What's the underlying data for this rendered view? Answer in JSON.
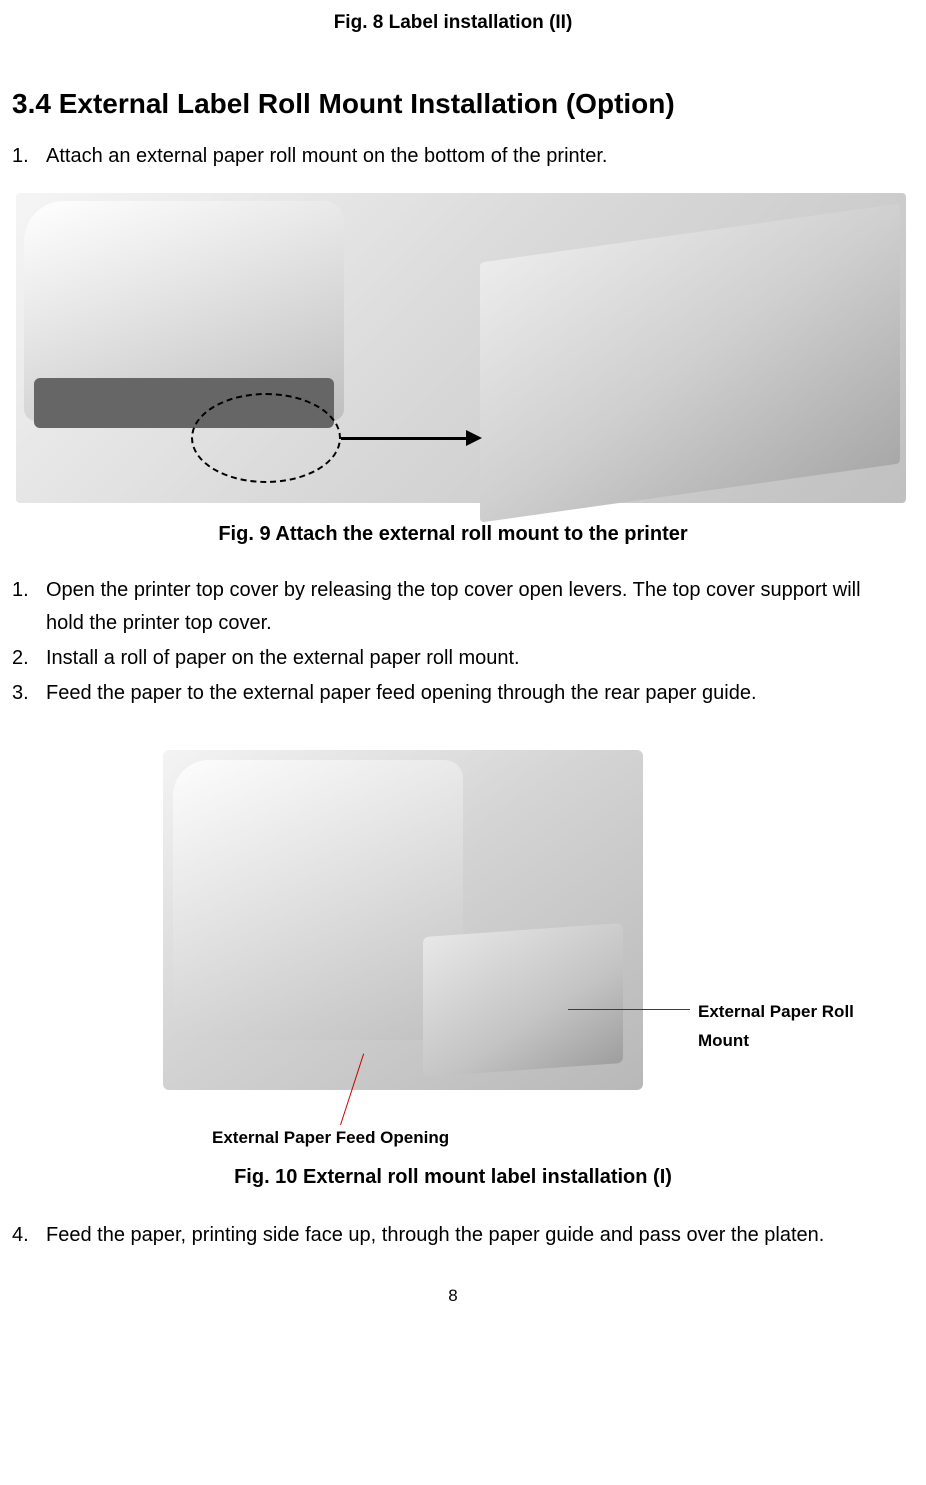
{
  "fig8_caption": "Fig. 8 Label installation (II)",
  "section_heading": "3.4 External Label Roll Mount Installation (Option)",
  "list_a": {
    "items": [
      {
        "num": "1.",
        "text": "Attach an external paper roll mount on the bottom of the printer."
      }
    ]
  },
  "fig9_caption": "Fig. 9 Attach the external roll mount to the printer",
  "list_b": {
    "items": [
      {
        "num": "1.",
        "text": "Open the printer top cover by releasing the top cover open levers. The top cover support will hold the printer top cover."
      },
      {
        "num": "2.",
        "text": "Install a roll of paper on the external paper roll mount."
      },
      {
        "num": "3.",
        "text": "Feed the paper to the external paper feed opening through the rear paper guide."
      }
    ]
  },
  "fig10": {
    "callout_right_line1": "External Paper Roll",
    "callout_right_line2": "Mount",
    "callout_bottom": "External Paper Feed Opening",
    "caption": "Fig. 10 External roll mount label installation (I)",
    "callout_line_color": "#cc0000"
  },
  "list_c": {
    "items": [
      {
        "num": "4.",
        "text": "Feed the paper, printing side face up, through the paper guide and pass over the platen."
      }
    ]
  },
  "page_number": "8"
}
